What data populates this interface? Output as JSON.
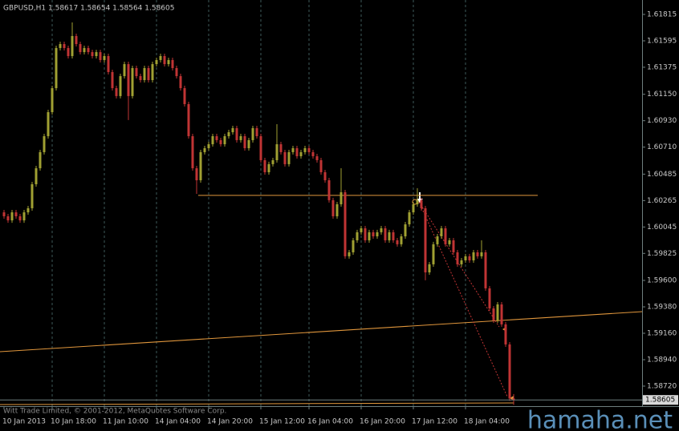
{
  "chart_data": {
    "type": "candlestick",
    "title": "GBPUSD,H1  1.58617 1.58654 1.58564 1.58605",
    "footer": "Witt Trade Limited, © 2001-2012, MetaQuotes Software Corp.",
    "watermark": "hamaha.net",
    "up_color": "#a0a032",
    "down_color": "#c03434",
    "grid": true,
    "ylim": [
      1.58553,
      1.61935
    ],
    "yticks": [
      1.61815,
      1.61595,
      1.61375,
      {
        "value": 1.6115,
        "label": "1.61150"
      },
      {
        "value": 1.6093,
        "label": "1.60930"
      },
      {
        "value": 1.6071,
        "label": "1.60710"
      },
      1.60485,
      1.60265,
      1.60045,
      1.59825,
      {
        "value": 1.596,
        "label": "1.59600"
      },
      {
        "value": 1.5938,
        "label": "1.59380"
      },
      {
        "value": 1.5916,
        "label": "1.59160"
      },
      {
        "value": 1.5894,
        "label": "1.58940"
      },
      {
        "value": 1.5872,
        "label": "1.58720"
      }
    ],
    "last_price": 1.58605,
    "horizontal_level": 1.60308,
    "categories": [
      "10 Jan 2013",
      null,
      null,
      null,
      null,
      null,
      null,
      null,
      null,
      null,
      null,
      null,
      "10 Jan 18:00",
      null,
      null,
      null,
      null,
      null,
      null,
      null,
      null,
      null,
      null,
      null,
      null,
      "11 Jan 10:00",
      null,
      null,
      null,
      null,
      null,
      null,
      null,
      null,
      null,
      null,
      null,
      null,
      "14 Jan 04:00",
      null,
      null,
      null,
      null,
      null,
      null,
      null,
      null,
      null,
      null,
      null,
      null,
      "14 Jan 20:00",
      null,
      null,
      null,
      null,
      null,
      null,
      null,
      null,
      null,
      null,
      null,
      null,
      "15 Jan 12:00",
      null,
      null,
      null,
      null,
      null,
      null,
      null,
      null,
      null,
      null,
      null,
      "16 Jan 04:00",
      null,
      null,
      null,
      null,
      null,
      null,
      null,
      null,
      null,
      null,
      null,
      null,
      "16 Jan 20:00",
      null,
      null,
      null,
      null,
      null,
      null,
      null,
      null,
      null,
      null,
      null,
      null,
      "17 Jan 12:00",
      null,
      null,
      null,
      null,
      null,
      null,
      null,
      null,
      null,
      null,
      null,
      null,
      "18 Jan 04:00",
      null,
      null,
      null,
      null,
      null,
      null,
      null,
      null,
      null,
      null,
      null,
      null
    ],
    "open": [
      1.60167,
      1.60134,
      1.601,
      1.60167,
      1.60134,
      1.601,
      1.60167,
      1.60201,
      1.60401,
      1.60534,
      1.60668,
      1.60801,
      1.61001,
      1.61201,
      1.61535,
      1.61568,
      1.61535,
      1.61468,
      1.61635,
      1.61568,
      1.61501,
      1.61535,
      1.61501,
      1.61468,
      1.61501,
      1.61435,
      1.61468,
      1.61335,
      1.61201,
      1.61135,
      1.61301,
      1.61401,
      1.61135,
      1.61368,
      1.61301,
      1.61268,
      1.61368,
      1.61268,
      1.61401,
      1.61435,
      1.61468,
      1.61401,
      1.61435,
      1.61368,
      1.61301,
      1.61201,
      1.61068,
      1.60801,
      1.60534,
      1.60434,
      1.60668,
      1.60701,
      1.60734,
      1.60801,
      1.60768,
      1.60734,
      1.60801,
      1.60834,
      1.60868,
      1.60768,
      1.60801,
      1.60701,
      1.60768,
      1.60868,
      1.60801,
      1.60601,
      1.60501,
      1.60568,
      1.60601,
      1.60734,
      1.60668,
      1.60568,
      1.60668,
      1.60701,
      1.60634,
      1.60668,
      1.60701,
      1.60668,
      1.60634,
      1.60601,
      1.60501,
      1.60434,
      1.60268,
      1.60134,
      1.60234,
      1.60334,
      1.59801,
      1.59834,
      1.59934,
      1.60001,
      1.60034,
      1.59934,
      1.60001,
      1.59967,
      1.60001,
      1.60034,
      1.59934,
      1.60001,
      1.59934,
      1.59901,
      1.59967,
      1.60067,
      1.60167,
      1.60234,
      1.60268,
      1.60201,
      1.59667,
      1.59734,
      1.59901,
      1.59967,
      1.60034,
      1.59901,
      1.59934,
      1.59834,
      1.59734,
      1.59767,
      1.59801,
      1.59767,
      1.59834,
      1.59801,
      1.59834,
      1.59534,
      1.59367,
      1.59267,
      1.594,
      1.59234,
      1.59067,
      1.58617
    ],
    "high": [
      1.60187,
      1.60154,
      1.60187,
      1.60187,
      1.60154,
      1.60187,
      1.60221,
      1.60421,
      1.60554,
      1.60688,
      1.60821,
      1.61021,
      1.61221,
      1.61555,
      1.61588,
      1.61588,
      1.61555,
      1.61748,
      1.61655,
      1.61588,
      1.61555,
      1.61555,
      1.61521,
      1.61521,
      1.61521,
      1.61488,
      1.61488,
      1.61355,
      1.61221,
      1.61321,
      1.61421,
      1.61421,
      1.61388,
      1.61388,
      1.61321,
      1.61388,
      1.61388,
      1.61421,
      1.61455,
      1.61488,
      1.61488,
      1.61455,
      1.61455,
      1.61388,
      1.61321,
      1.61221,
      1.61088,
      1.60821,
      1.60554,
      1.60688,
      1.60721,
      1.60754,
      1.60821,
      1.60821,
      1.60788,
      1.60821,
      1.60854,
      1.60888,
      1.60888,
      1.60821,
      1.60821,
      1.60788,
      1.60888,
      1.60888,
      1.60821,
      1.60621,
      1.60588,
      1.60621,
      1.60901,
      1.60754,
      1.60688,
      1.60688,
      1.60721,
      1.60721,
      1.60688,
      1.60721,
      1.60721,
      1.60688,
      1.60654,
      1.60621,
      1.60521,
      1.60454,
      1.60288,
      1.60254,
      1.60534,
      1.60354,
      1.59854,
      1.59954,
      1.60021,
      1.60054,
      1.60054,
      1.60021,
      1.60021,
      1.60021,
      1.60054,
      1.60054,
      1.60021,
      1.60021,
      1.59954,
      1.59987,
      1.60087,
      1.60187,
      1.60254,
      1.60368,
      1.60288,
      1.60221,
      1.59754,
      1.59921,
      1.59987,
      1.60054,
      1.60054,
      1.59954,
      1.59954,
      1.59854,
      1.59787,
      1.59821,
      1.59821,
      1.59854,
      1.59854,
      1.59934,
      1.59854,
      1.59554,
      1.59387,
      1.5942,
      1.5942,
      1.59254,
      1.59087,
      1.58654
    ],
    "low": [
      1.60114,
      1.6008,
      1.6008,
      1.60114,
      1.6008,
      1.6008,
      1.60147,
      1.60181,
      1.60381,
      1.60514,
      1.60648,
      1.60781,
      1.60981,
      1.61181,
      1.61515,
      1.61515,
      1.61448,
      1.61448,
      1.61548,
      1.61481,
      1.61481,
      1.61481,
      1.61448,
      1.61448,
      1.61415,
      1.61415,
      1.61315,
      1.61181,
      1.61115,
      1.61115,
      1.61281,
      1.60935,
      1.61115,
      1.61281,
      1.61248,
      1.61248,
      1.61248,
      1.61248,
      1.61381,
      1.61415,
      1.61381,
      1.61381,
      1.61348,
      1.61281,
      1.61181,
      1.61048,
      1.60781,
      1.60514,
      1.60321,
      1.60414,
      1.60648,
      1.60681,
      1.60714,
      1.60748,
      1.60714,
      1.60714,
      1.60781,
      1.60814,
      1.60748,
      1.60748,
      1.60681,
      1.60681,
      1.60748,
      1.60781,
      1.60581,
      1.60481,
      1.60481,
      1.60548,
      1.60581,
      1.60648,
      1.60548,
      1.60548,
      1.60648,
      1.60614,
      1.60614,
      1.60648,
      1.60648,
      1.60614,
      1.60581,
      1.60481,
      1.60414,
      1.60248,
      1.60114,
      1.60114,
      1.60214,
      1.59781,
      1.59781,
      1.59814,
      1.59914,
      1.59981,
      1.59914,
      1.59914,
      1.59947,
      1.59947,
      1.59981,
      1.59914,
      1.59914,
      1.59914,
      1.59881,
      1.59881,
      1.59947,
      1.60047,
      1.60147,
      1.60214,
      1.60181,
      1.59601,
      1.59647,
      1.59714,
      1.59881,
      1.59947,
      1.59881,
      1.59881,
      1.59814,
      1.59714,
      1.59714,
      1.59747,
      1.59747,
      1.59747,
      1.59781,
      1.59781,
      1.59514,
      1.59347,
      1.59247,
      1.59247,
      1.59214,
      1.59047,
      1.58597,
      1.58564
    ],
    "close": [
      1.60134,
      1.601,
      1.60167,
      1.60134,
      1.601,
      1.60167,
      1.60201,
      1.60401,
      1.60534,
      1.60668,
      1.60801,
      1.61001,
      1.61201,
      1.61535,
      1.61568,
      1.61535,
      1.61468,
      1.61635,
      1.61568,
      1.61501,
      1.61535,
      1.61501,
      1.61468,
      1.61501,
      1.61435,
      1.61468,
      1.61335,
      1.61201,
      1.61135,
      1.61301,
      1.61401,
      1.61135,
      1.61368,
      1.61301,
      1.61268,
      1.61368,
      1.61268,
      1.61401,
      1.61435,
      1.61468,
      1.61401,
      1.61435,
      1.61368,
      1.61301,
      1.61201,
      1.61068,
      1.60801,
      1.60534,
      1.60434,
      1.60668,
      1.60701,
      1.60734,
      1.60801,
      1.60768,
      1.60734,
      1.60801,
      1.60834,
      1.60868,
      1.60768,
      1.60801,
      1.60701,
      1.60768,
      1.60868,
      1.60801,
      1.60601,
      1.60501,
      1.60568,
      1.60601,
      1.60734,
      1.60668,
      1.60568,
      1.60668,
      1.60701,
      1.60634,
      1.60668,
      1.60701,
      1.60668,
      1.60634,
      1.60601,
      1.60501,
      1.60434,
      1.60268,
      1.60134,
      1.60234,
      1.60334,
      1.59801,
      1.59834,
      1.59934,
      1.60001,
      1.60034,
      1.59934,
      1.60001,
      1.59967,
      1.60001,
      1.60034,
      1.59934,
      1.60001,
      1.59934,
      1.59901,
      1.59967,
      1.60067,
      1.60167,
      1.60234,
      1.60268,
      1.60201,
      1.59667,
      1.59734,
      1.59901,
      1.59967,
      1.60034,
      1.59901,
      1.59934,
      1.59834,
      1.59734,
      1.59767,
      1.59801,
      1.59767,
      1.59834,
      1.59801,
      1.59834,
      1.59534,
      1.59367,
      1.59267,
      1.594,
      1.59234,
      1.59067,
      1.58617,
      1.58605
    ]
  }
}
